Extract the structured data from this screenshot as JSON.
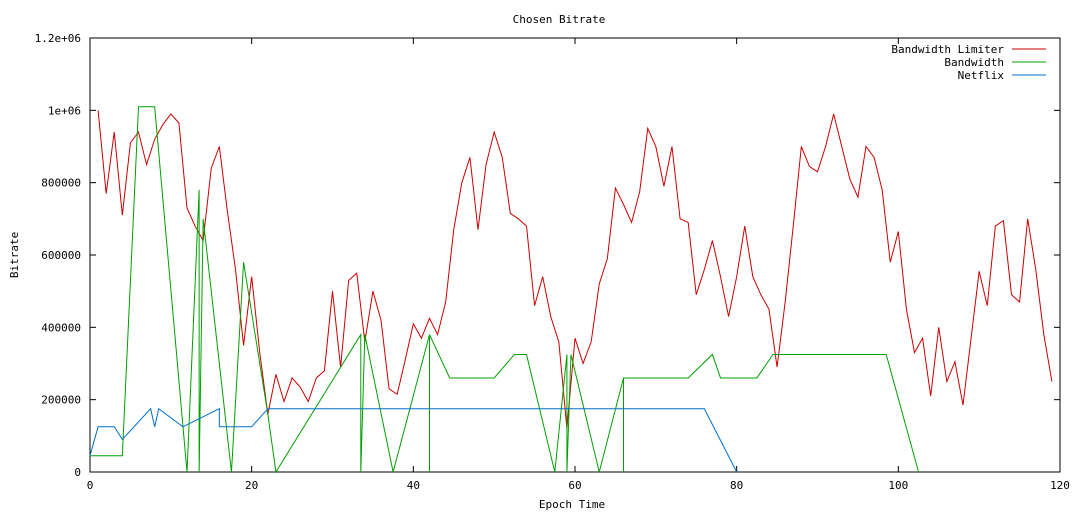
{
  "chart_data": {
    "type": "line",
    "title": "Chosen Bitrate",
    "xlabel": "Epoch Time",
    "ylabel": "Bitrate",
    "xlim": [
      0,
      120
    ],
    "ylim": [
      0,
      1200000
    ],
    "x_ticks": [
      0,
      20,
      40,
      60,
      80,
      100,
      120
    ],
    "x_tick_labels": [
      "0",
      "20",
      "40",
      "60",
      "80",
      "100",
      "120"
    ],
    "y_ticks": [
      0,
      200000,
      400000,
      600000,
      800000,
      1000000,
      1200000
    ],
    "y_tick_labels": [
      "0",
      "200000",
      "400000",
      "600000",
      "800000",
      "1e+06",
      "1.2e+06"
    ],
    "grid": false,
    "legend_position": "top-right",
    "series": [
      {
        "name": "Bandwidth Limiter",
        "color": "#cc0000",
        "points": [
          [
            1,
            1000000
          ],
          [
            2,
            770000
          ],
          [
            3,
            940000
          ],
          [
            4,
            710000
          ],
          [
            5,
            910000
          ],
          [
            6,
            940000
          ],
          [
            7,
            850000
          ],
          [
            8,
            920000
          ],
          [
            9,
            960000
          ],
          [
            10,
            990000
          ],
          [
            11,
            965000
          ],
          [
            12,
            730000
          ],
          [
            13,
            680000
          ],
          [
            14,
            640000
          ],
          [
            15,
            840000
          ],
          [
            16,
            900000
          ],
          [
            17,
            720000
          ],
          [
            18,
            560000
          ],
          [
            19,
            350000
          ],
          [
            20,
            540000
          ],
          [
            21,
            330000
          ],
          [
            22,
            160000
          ],
          [
            23,
            270000
          ],
          [
            24,
            195000
          ],
          [
            25,
            260000
          ],
          [
            26,
            235000
          ],
          [
            27,
            195000
          ],
          [
            28,
            260000
          ],
          [
            29,
            280000
          ],
          [
            30,
            500000
          ],
          [
            31,
            290000
          ],
          [
            32,
            530000
          ],
          [
            33,
            550000
          ],
          [
            34,
            360000
          ],
          [
            35,
            500000
          ],
          [
            36,
            420000
          ],
          [
            37,
            230000
          ],
          [
            38,
            215000
          ],
          [
            39,
            310000
          ],
          [
            40,
            410000
          ],
          [
            41,
            370000
          ],
          [
            42,
            425000
          ],
          [
            43,
            380000
          ],
          [
            44,
            470000
          ],
          [
            45,
            670000
          ],
          [
            46,
            800000
          ],
          [
            47,
            870000
          ],
          [
            48,
            670000
          ],
          [
            49,
            850000
          ],
          [
            50,
            940000
          ],
          [
            51,
            870000
          ],
          [
            52,
            715000
          ],
          [
            53,
            700000
          ],
          [
            54,
            680000
          ],
          [
            55,
            460000
          ],
          [
            56,
            540000
          ],
          [
            57,
            430000
          ],
          [
            58,
            360000
          ],
          [
            59,
            120000
          ],
          [
            60,
            370000
          ],
          [
            61,
            300000
          ],
          [
            62,
            360000
          ],
          [
            63,
            520000
          ],
          [
            64,
            590000
          ],
          [
            65,
            785000
          ],
          [
            66,
            740000
          ],
          [
            67,
            690000
          ],
          [
            68,
            775000
          ],
          [
            69,
            950000
          ],
          [
            70,
            900000
          ],
          [
            71,
            790000
          ],
          [
            72,
            900000
          ],
          [
            73,
            700000
          ],
          [
            74,
            690000
          ],
          [
            75,
            490000
          ],
          [
            76,
            560000
          ],
          [
            77,
            640000
          ],
          [
            78,
            540000
          ],
          [
            79,
            430000
          ],
          [
            80,
            540000
          ],
          [
            81,
            680000
          ],
          [
            82,
            540000
          ],
          [
            83,
            490000
          ],
          [
            84,
            450000
          ],
          [
            85,
            290000
          ],
          [
            86,
            470000
          ],
          [
            87,
            680000
          ],
          [
            88,
            900000
          ],
          [
            89,
            845000
          ],
          [
            90,
            830000
          ],
          [
            91,
            900000
          ],
          [
            92,
            990000
          ],
          [
            93,
            900000
          ],
          [
            94,
            810000
          ],
          [
            95,
            760000
          ],
          [
            96,
            900000
          ],
          [
            97,
            870000
          ],
          [
            98,
            780000
          ],
          [
            99,
            580000
          ],
          [
            100,
            665000
          ],
          [
            101,
            450000
          ],
          [
            102,
            330000
          ],
          [
            103,
            370000
          ],
          [
            104,
            210000
          ],
          [
            105,
            400000
          ],
          [
            106,
            250000
          ],
          [
            107,
            305000
          ],
          [
            108,
            185000
          ],
          [
            109,
            370000
          ],
          [
            110,
            555000
          ],
          [
            111,
            460000
          ],
          [
            112,
            680000
          ],
          [
            113,
            695000
          ],
          [
            114,
            490000
          ],
          [
            115,
            470000
          ],
          [
            116,
            700000
          ],
          [
            117,
            560000
          ],
          [
            118,
            380000
          ],
          [
            119,
            250000
          ]
        ]
      },
      {
        "name": "Bandwidth",
        "color": "#00a000",
        "points": [
          [
            0,
            45000
          ],
          [
            4,
            45000
          ],
          [
            6,
            1010000
          ],
          [
            8,
            1010000
          ],
          [
            12,
            0
          ],
          [
            13.5,
            780000
          ],
          [
            13.5,
            0
          ],
          [
            14,
            700000
          ],
          [
            17.5,
            0
          ],
          [
            19,
            580000
          ],
          [
            22,
            160000
          ],
          [
            23,
            0
          ],
          [
            33.5,
            380000
          ],
          [
            33.5,
            0
          ],
          [
            34,
            380000
          ],
          [
            37.5,
            0
          ],
          [
            42,
            380000
          ],
          [
            42,
            0
          ],
          [
            42,
            380000
          ],
          [
            44.5,
            260000
          ],
          [
            50,
            260000
          ],
          [
            52.5,
            325000
          ],
          [
            54,
            325000
          ],
          [
            57.5,
            0
          ],
          [
            59,
            325000
          ],
          [
            59,
            0
          ],
          [
            59.5,
            325000
          ],
          [
            63,
            0
          ],
          [
            66,
            260000
          ],
          [
            66,
            0
          ],
          [
            66,
            260000
          ],
          [
            74,
            260000
          ],
          [
            77,
            325000
          ],
          [
            78,
            260000
          ],
          [
            82.5,
            260000
          ],
          [
            84.5,
            325000
          ],
          [
            98.5,
            325000
          ],
          [
            102.5,
            0
          ]
        ]
      },
      {
        "name": "Netflix",
        "color": "#0070cc",
        "points": [
          [
            0,
            45000
          ],
          [
            1,
            125000
          ],
          [
            3,
            125000
          ],
          [
            4,
            90000
          ],
          [
            7.5,
            175000
          ],
          [
            8,
            125000
          ],
          [
            8.5,
            175000
          ],
          [
            11.5,
            125000
          ],
          [
            16,
            175000
          ],
          [
            16,
            125000
          ],
          [
            20,
            125000
          ],
          [
            22,
            175000
          ],
          [
            76,
            175000
          ],
          [
            80,
            0
          ]
        ]
      }
    ]
  }
}
